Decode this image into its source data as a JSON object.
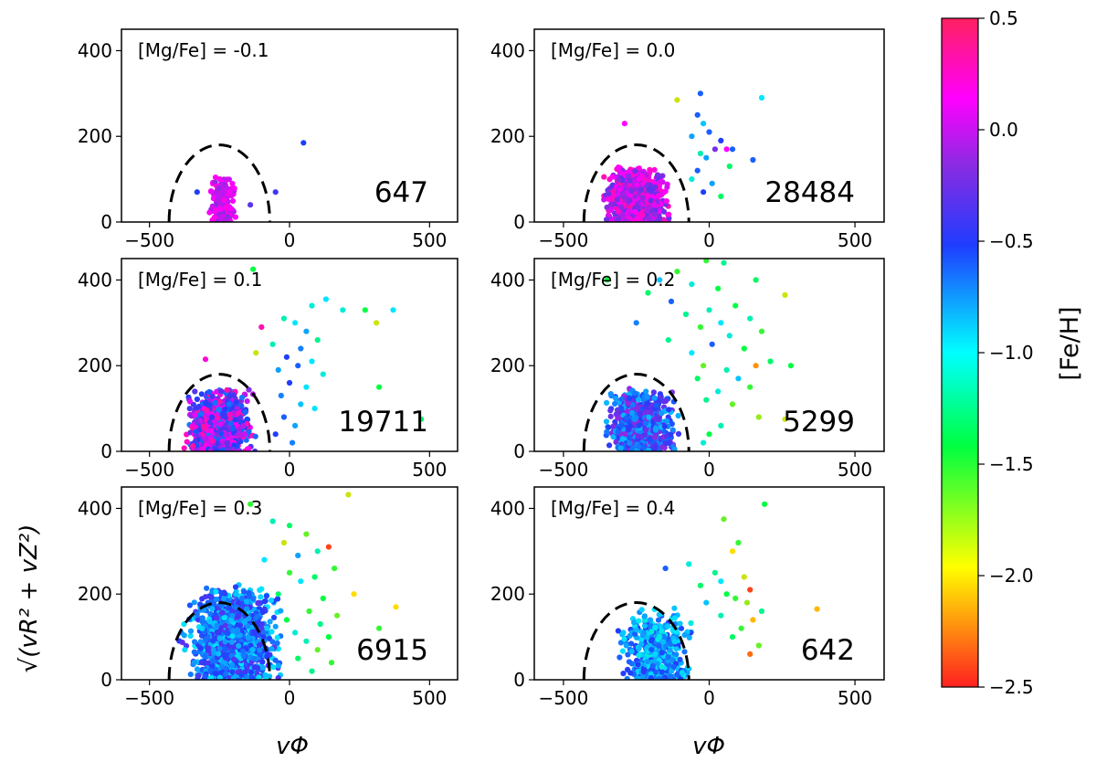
{
  "chart_data": {
    "type": "scatter",
    "xlabel": "vΦ",
    "ylabel": "√(vR² + vZ²)",
    "xlim": [
      -600,
      600
    ],
    "ylim": [
      0,
      450
    ],
    "x_ticks": [
      -500,
      0,
      500
    ],
    "y_ticks": [
      0,
      200,
      400
    ],
    "x_tick_labels": [
      "−500",
      "0",
      "500"
    ],
    "y_tick_labels": [
      "0",
      "200",
      "400"
    ],
    "boundary": {
      "shape": "semi-ellipse",
      "center_x": -250,
      "radius_x": 180,
      "radius_y": 180,
      "style": "dashed"
    },
    "colorbar": {
      "label": "[Fe/H]",
      "range": [
        -2.5,
        0.5
      ],
      "ticks": [
        0.5,
        0.0,
        -0.5,
        -1.0,
        -1.5,
        -2.0,
        -2.5
      ],
      "tick_labels": [
        "0.5",
        "0.0",
        "−0.5",
        "−1.0",
        "−1.5",
        "−2.0",
        "−2.5"
      ],
      "colormap": [
        "#ff2020",
        "#ffff00",
        "#00ff40",
        "#00ffff",
        "#1f3dff",
        "#8a2be2",
        "#ff00ff",
        "#ff2060"
      ]
    },
    "panels": [
      {
        "label": "[Mg/Fe] = -0.1",
        "count_label": "647",
        "count": 647,
        "core": {
          "cx": -240,
          "sx": 22,
          "maxy": 110,
          "n": 260,
          "feh": [
            -0.15,
            0.2
          ]
        },
        "tail": [
          [
            50,
            185,
            -0.5
          ],
          [
            -50,
            70,
            -0.4
          ],
          [
            -140,
            40,
            -0.3
          ],
          [
            -330,
            70,
            -0.5
          ]
        ]
      },
      {
        "label": "[Mg/Fe] = 0.0",
        "count_label": "28484",
        "count": 28484,
        "core": {
          "cx": -250,
          "sx": 55,
          "maxy": 135,
          "n": 900,
          "feh": [
            -0.3,
            0.3
          ]
        },
        "tail": [
          [
            -30,
            300,
            -0.6
          ],
          [
            180,
            290,
            -1.0
          ],
          [
            -110,
            285,
            -1.9
          ],
          [
            -290,
            230,
            0.1
          ],
          [
            -40,
            250,
            -0.6
          ],
          [
            -20,
            230,
            -0.9
          ],
          [
            0,
            210,
            -0.6
          ],
          [
            -60,
            200,
            -0.8
          ],
          [
            40,
            190,
            -0.5
          ],
          [
            20,
            170,
            -0.2
          ],
          [
            60,
            170,
            0.1
          ],
          [
            80,
            170,
            -0.6
          ],
          [
            -30,
            160,
            -1.2
          ],
          [
            -10,
            150,
            -0.8
          ],
          [
            150,
            145,
            -0.6
          ],
          [
            70,
            130,
            -1.4
          ],
          [
            -40,
            120,
            -0.6
          ],
          [
            -60,
            100,
            -1.1
          ],
          [
            40,
            60,
            -1.4
          ],
          [
            10,
            90,
            -0.8
          ],
          [
            -20,
            70,
            -0.5
          ]
        ]
      },
      {
        "label": "[Mg/Fe] = 0.1",
        "count_label": "19711",
        "count": 19711,
        "core": {
          "cx": -250,
          "sx": 60,
          "maxy": 150,
          "n": 900,
          "feh": [
            -0.7,
            0.35
          ]
        },
        "tail": [
          [
            -130,
            425,
            -1.5
          ],
          [
            130,
            355,
            -1.0
          ],
          [
            80,
            340,
            -1.1
          ],
          [
            190,
            330,
            -1.1
          ],
          [
            370,
            330,
            -1.0
          ],
          [
            270,
            330,
            -1.5
          ],
          [
            310,
            300,
            -1.9
          ],
          [
            -100,
            290,
            0.3
          ],
          [
            -20,
            310,
            -1.2
          ],
          [
            20,
            300,
            -1.0
          ],
          [
            60,
            280,
            -0.8
          ],
          [
            100,
            260,
            -1.3
          ],
          [
            40,
            240,
            -0.7
          ],
          [
            -60,
            250,
            -1.2
          ],
          [
            -120,
            230,
            -1.9
          ],
          [
            -300,
            215,
            0.2
          ],
          [
            -10,
            220,
            -0.5
          ],
          [
            80,
            210,
            -1.0
          ],
          [
            30,
            200,
            -0.6
          ],
          [
            -40,
            190,
            -0.8
          ],
          [
            120,
            180,
            -1.1
          ],
          [
            0,
            160,
            -0.5
          ],
          [
            60,
            150,
            -1.0
          ],
          [
            320,
            150,
            -1.5
          ],
          [
            -30,
            130,
            -0.7
          ],
          [
            40,
            110,
            -0.9
          ],
          [
            90,
            100,
            -1.0
          ],
          [
            470,
            75,
            -1.4
          ],
          [
            -20,
            80,
            -0.6
          ],
          [
            20,
            60,
            -0.8
          ],
          [
            -50,
            40,
            -0.5
          ],
          [
            10,
            20,
            -0.7
          ]
        ]
      },
      {
        "label": "[Mg/Fe] = 0.2",
        "count_label": "5299",
        "count": 5299,
        "core": {
          "cx": -230,
          "sx": 60,
          "maxy": 150,
          "n": 800,
          "feh": [
            -0.9,
            -0.1
          ]
        },
        "tail": [
          [
            -10,
            445,
            -1.6
          ],
          [
            50,
            440,
            -1.3
          ],
          [
            -110,
            420,
            -1.6
          ],
          [
            -350,
            400,
            -1.5
          ],
          [
            -170,
            400,
            -0.9
          ],
          [
            160,
            400,
            -1.4
          ],
          [
            -60,
            390,
            -1.1
          ],
          [
            30,
            380,
            -1.5
          ],
          [
            -210,
            370,
            -1.4
          ],
          [
            260,
            365,
            -1.9
          ],
          [
            -130,
            350,
            -0.6
          ],
          [
            90,
            340,
            -1.5
          ],
          [
            0,
            330,
            -1.2
          ],
          [
            -80,
            320,
            -1.3
          ],
          [
            140,
            310,
            -1.2
          ],
          [
            -250,
            300,
            -0.7
          ],
          [
            40,
            300,
            -1.0
          ],
          [
            -30,
            290,
            -1.6
          ],
          [
            180,
            280,
            -1.6
          ],
          [
            70,
            270,
            -1.1
          ],
          [
            -140,
            260,
            -1.3
          ],
          [
            10,
            250,
            -0.6
          ],
          [
            120,
            240,
            -1.5
          ],
          [
            -60,
            230,
            -1.0
          ],
          [
            210,
            210,
            -1.4
          ],
          [
            280,
            200,
            -1.5
          ],
          [
            160,
            200,
            -2.2
          ],
          [
            -20,
            200,
            -1.7
          ],
          [
            60,
            190,
            -1.2
          ],
          [
            100,
            170,
            -0.9
          ],
          [
            -40,
            170,
            -1.4
          ],
          [
            140,
            150,
            -1.6
          ],
          [
            30,
            140,
            -1.1
          ],
          [
            -10,
            120,
            -1.3
          ],
          [
            80,
            110,
            -1.7
          ],
          [
            170,
            80,
            -1.8
          ],
          [
            260,
            75,
            -1.9
          ],
          [
            40,
            60,
            -1.2
          ],
          [
            0,
            40,
            -1.5
          ],
          [
            -20,
            20,
            -1.1
          ]
        ]
      },
      {
        "label": "[Mg/Fe] = 0.3",
        "count_label": "6915",
        "count": 6915,
        "core": {
          "cx": -200,
          "sx": 85,
          "maxy": 230,
          "n": 1200,
          "feh": [
            -1.0,
            -0.3
          ]
        },
        "tail": [
          [
            210,
            432,
            -1.9
          ],
          [
            -140,
            410,
            -1.6
          ],
          [
            -60,
            370,
            -1.2
          ],
          [
            0,
            360,
            -1.4
          ],
          [
            60,
            340,
            -1.7
          ],
          [
            -20,
            320,
            -1.9
          ],
          [
            140,
            310,
            -2.4
          ],
          [
            100,
            300,
            -1.2
          ],
          [
            30,
            290,
            -0.8
          ],
          [
            -90,
            280,
            -1.0
          ],
          [
            160,
            260,
            -1.6
          ],
          [
            90,
            240,
            -1.4
          ],
          [
            40,
            230,
            -1.0
          ],
          [
            230,
            200,
            -2.0
          ],
          [
            120,
            190,
            -1.5
          ],
          [
            380,
            170,
            -2.0
          ],
          [
            70,
            160,
            -1.6
          ],
          [
            170,
            150,
            -1.7
          ],
          [
            110,
            130,
            -1.3
          ],
          [
            320,
            120,
            -1.6
          ],
          [
            140,
            100,
            -1.5
          ],
          [
            60,
            90,
            -1.2
          ],
          [
            100,
            70,
            -1.7
          ],
          [
            30,
            50,
            -1.4
          ],
          [
            150,
            40,
            -1.6
          ],
          [
            80,
            20,
            -1.3
          ],
          [
            -10,
            140,
            -1.5
          ],
          [
            20,
            110,
            -1.1
          ],
          [
            -40,
            200,
            -1.4
          ],
          [
            0,
            250,
            -1.6
          ]
        ]
      },
      {
        "label": "[Mg/Fe] = 0.4",
        "count_label": "642",
        "count": 642,
        "core": {
          "cx": -180,
          "sx": 65,
          "maxy": 175,
          "n": 450,
          "feh": [
            -1.1,
            -0.45
          ]
        },
        "tail": [
          [
            190,
            410,
            -1.5
          ],
          [
            50,
            375,
            -1.7
          ],
          [
            100,
            320,
            -1.6
          ],
          [
            80,
            300,
            -2.0
          ],
          [
            -70,
            270,
            -1.1
          ],
          [
            -150,
            260,
            -0.6
          ],
          [
            20,
            250,
            -1.3
          ],
          [
            120,
            240,
            -1.9
          ],
          [
            40,
            230,
            -1.0
          ],
          [
            140,
            210,
            -2.4
          ],
          [
            -30,
            220,
            -1.4
          ],
          [
            60,
            200,
            -1.5
          ],
          [
            90,
            190,
            -1.6
          ],
          [
            130,
            180,
            -1.8
          ],
          [
            370,
            165,
            -2.1
          ],
          [
            180,
            160,
            -1.3
          ],
          [
            150,
            140,
            -2.1
          ],
          [
            110,
            120,
            -1.6
          ],
          [
            170,
            80,
            -1.7
          ],
          [
            140,
            60,
            -2.3
          ],
          [
            40,
            150,
            -1.2
          ],
          [
            80,
            100,
            -1.4
          ],
          [
            -10,
            180,
            -0.9
          ]
        ]
      }
    ]
  }
}
